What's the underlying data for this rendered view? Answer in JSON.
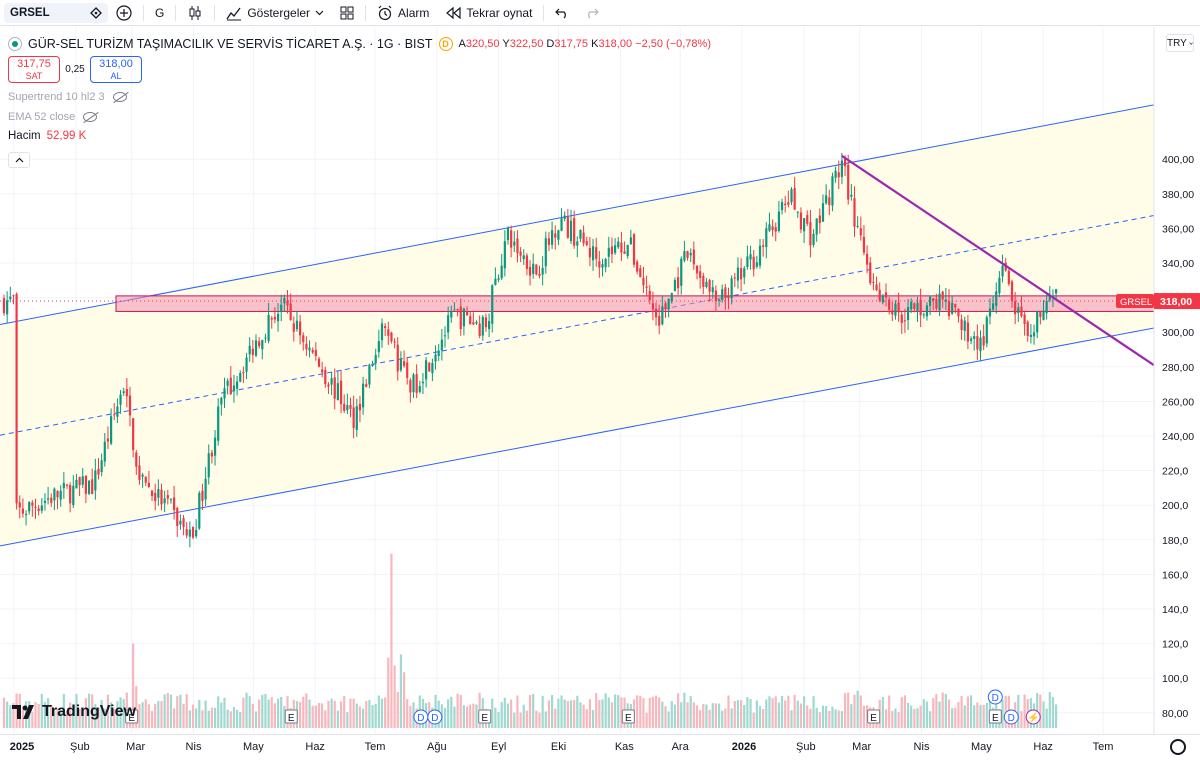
{
  "toolbar": {
    "symbol": "GRSEL",
    "interval": "G",
    "indicators_label": "Göstergeler",
    "alarm_label": "Alarm",
    "replay_label": "Tekrar oynat"
  },
  "legend": {
    "title": "GÜR-SEL TURİZM TAŞIMACILIK VE SERVİS TİCARET A.Ş. · 1G · BIST",
    "delay_badge": "D",
    "ohlc": [
      {
        "k": "A",
        "v": "320,50"
      },
      {
        "k": "Y",
        "v": "322,50"
      },
      {
        "k": "D",
        "v": "317,75"
      },
      {
        "k": "K",
        "v": "318,00"
      }
    ],
    "change": "−2,50 (−0,78%)",
    "sell_price": "317,75",
    "sell_label": "SAT",
    "spread": "0,25",
    "buy_price": "318,00",
    "buy_label": "AL",
    "indicators": [
      "Supertrend 10 hl2 3",
      "EMA 52 close"
    ],
    "volume_label": "Hacim",
    "volume_value": "52,99 K"
  },
  "price_axis": {
    "currency": "TRY",
    "last_symbol": "GRSEL",
    "last_price": "318,00",
    "ticks": [
      "400,00",
      "380,00",
      "360,00",
      "340,00",
      "320,00",
      "300,00",
      "280,00",
      "260,00",
      "240,00",
      "220,0",
      "200,0",
      "180,0",
      "160,0",
      "140,0",
      "120,0",
      "100,0",
      "80,00"
    ]
  },
  "time_axis": {
    "labels": [
      {
        "t": "2025",
        "bold": true
      },
      {
        "t": "Şub"
      },
      {
        "t": "Mar"
      },
      {
        "t": "Nis"
      },
      {
        "t": "May"
      },
      {
        "t": "Haz"
      },
      {
        "t": "Tem"
      },
      {
        "t": "Ağu"
      },
      {
        "t": "Eyl"
      },
      {
        "t": "Eki"
      },
      {
        "t": "Kas"
      },
      {
        "t": "Ara"
      },
      {
        "t": "2026",
        "bold": true
      },
      {
        "t": "Şub"
      },
      {
        "t": "Mar"
      },
      {
        "t": "Nis"
      },
      {
        "t": "May"
      },
      {
        "t": "Haz"
      },
      {
        "t": "Tem"
      }
    ]
  },
  "events": {
    "earnings_marker": "E",
    "dividend_marker": "D"
  },
  "brand": "TradingView",
  "colors": {
    "up": "#089981",
    "down": "#f23645",
    "channel": "#2962ff",
    "channel_fill": "#fffde7",
    "zone": "#f48fb1",
    "trendline": "#9c27b0"
  },
  "chart_data": {
    "type": "candlestick",
    "symbol": "GRSEL",
    "interval": "1G",
    "y_unit": "TRY",
    "ylim": [
      80,
      440
    ],
    "x_range": [
      "2025-01",
      "2026-07"
    ],
    "last": {
      "open": 320.5,
      "high": 322.5,
      "low": 317.75,
      "close": 318.0
    },
    "price_path": [
      {
        "date": "2025-01-02",
        "close": 195
      },
      {
        "date": "2025-01-20",
        "close": 205
      },
      {
        "date": "2025-02-10",
        "close": 212
      },
      {
        "date": "2025-02-25",
        "close": 270
      },
      {
        "date": "2025-03-05",
        "close": 215
      },
      {
        "date": "2025-03-20",
        "close": 198
      },
      {
        "date": "2025-03-31",
        "close": 180
      },
      {
        "date": "2025-04-15",
        "close": 260
      },
      {
        "date": "2025-05-05",
        "close": 300
      },
      {
        "date": "2025-05-15",
        "close": 316
      },
      {
        "date": "2025-06-01",
        "close": 285
      },
      {
        "date": "2025-06-20",
        "close": 250
      },
      {
        "date": "2025-07-05",
        "close": 300
      },
      {
        "date": "2025-07-20",
        "close": 268
      },
      {
        "date": "2025-08-10",
        "close": 310
      },
      {
        "date": "2025-08-25",
        "close": 303
      },
      {
        "date": "2025-09-05",
        "close": 355
      },
      {
        "date": "2025-09-20",
        "close": 335
      },
      {
        "date": "2025-10-01",
        "close": 366
      },
      {
        "date": "2025-10-20",
        "close": 343
      },
      {
        "date": "2025-11-05",
        "close": 352
      },
      {
        "date": "2025-11-20",
        "close": 305
      },
      {
        "date": "2025-12-05",
        "close": 345
      },
      {
        "date": "2025-12-20",
        "close": 315
      },
      {
        "date": "2026-01-10",
        "close": 348
      },
      {
        "date": "2026-01-25",
        "close": 378
      },
      {
        "date": "2026-02-05",
        "close": 355
      },
      {
        "date": "2026-02-20",
        "close": 398
      },
      {
        "date": "2026-03-05",
        "close": 335
      },
      {
        "date": "2026-03-20",
        "close": 310
      },
      {
        "date": "2026-04-10",
        "close": 318
      },
      {
        "date": "2026-05-01",
        "close": 292
      },
      {
        "date": "2026-05-12",
        "close": 335
      },
      {
        "date": "2026-05-25",
        "close": 290
      },
      {
        "date": "2026-06-01",
        "close": 318
      }
    ],
    "volume_spikes": [
      {
        "date": "2025-03-01",
        "volume_level": 120
      },
      {
        "date": "2025-07-10",
        "volume_level": 172
      },
      {
        "date": "2026-03-01",
        "volume_level": 90
      }
    ],
    "drawings": {
      "support_zone": [
        312,
        321
      ],
      "channel_upper": [
        {
          "date": "2025-01-01",
          "price": 306
        },
        {
          "date": "2026-07-20",
          "price": 430
        }
      ],
      "channel_lower": [
        {
          "date": "2025-01-01",
          "price": 178
        },
        {
          "date": "2026-07-20",
          "price": 301
        }
      ],
      "channel_mid": [
        {
          "date": "2025-01-01",
          "price": 242
        },
        {
          "date": "2026-07-20",
          "price": 366
        }
      ],
      "trendline": [
        {
          "date": "2026-02-20",
          "price": 402
        },
        {
          "date": "2026-07-20",
          "price": 286
        }
      ]
    }
  }
}
